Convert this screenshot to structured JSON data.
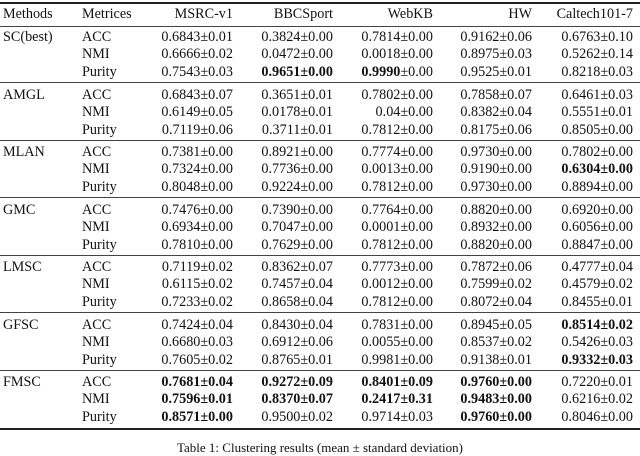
{
  "headers": [
    "Methods",
    "Metrices",
    "MSRC-v1",
    "BBCSport",
    "WebKB",
    "HW",
    "Caltech101-7"
  ],
  "groups": [
    {
      "method": "SC(best)",
      "rows": [
        {
          "metric": "ACC",
          "cells": [
            [
              "0.6843",
              "0.01",
              ""
            ],
            [
              "0.3824",
              "0.00",
              ""
            ],
            [
              "0.7814",
              "0.00",
              ""
            ],
            [
              "0.9162",
              "0.06",
              ""
            ],
            [
              "0.6763",
              "0.10",
              ""
            ]
          ]
        },
        {
          "metric": "NMI",
          "cells": [
            [
              "0.6666",
              "0.02",
              ""
            ],
            [
              "0.0472",
              "0.00",
              ""
            ],
            [
              "0.0018",
              "0.00",
              ""
            ],
            [
              "0.8975",
              "0.03",
              ""
            ],
            [
              "0.5262",
              "0.14",
              ""
            ]
          ]
        },
        {
          "metric": "Purity",
          "cells": [
            [
              "0.7543",
              "0.03",
              ""
            ],
            [
              "0.9651",
              "0.00",
              "all"
            ],
            [
              "0.9990",
              "0.00",
              "mean"
            ],
            [
              "0.9525",
              "0.01",
              ""
            ],
            [
              "0.8218",
              "0.03",
              ""
            ]
          ]
        }
      ]
    },
    {
      "method": "AMGL",
      "rows": [
        {
          "metric": "ACC",
          "cells": [
            [
              "0.6843",
              "0.07",
              ""
            ],
            [
              "0.3651",
              "0.01",
              ""
            ],
            [
              "0.7802",
              "0.00",
              ""
            ],
            [
              "0.7858",
              "0.07",
              ""
            ],
            [
              "0.6461",
              "0.03",
              ""
            ]
          ]
        },
        {
          "metric": "NMI",
          "cells": [
            [
              "0.6149",
              "0.05",
              ""
            ],
            [
              "0.0178",
              "0.01",
              ""
            ],
            [
              "0.04",
              "0.00",
              ""
            ],
            [
              "0.8382",
              "0.04",
              ""
            ],
            [
              "0.5551",
              "0.01",
              ""
            ]
          ]
        },
        {
          "metric": "Purity",
          "cells": [
            [
              "0.7119",
              "0.06",
              ""
            ],
            [
              "0.3711",
              "0.01",
              ""
            ],
            [
              "0.7812",
              "0.00",
              ""
            ],
            [
              "0.8175",
              "0.06",
              ""
            ],
            [
              "0.8505",
              "0.00",
              ""
            ]
          ]
        }
      ]
    },
    {
      "method": "MLAN",
      "rows": [
        {
          "metric": "ACC",
          "cells": [
            [
              "0.7381",
              "0.00",
              ""
            ],
            [
              "0.8921",
              "0.00",
              ""
            ],
            [
              "0.7774",
              "0.00",
              ""
            ],
            [
              "0.9730",
              "0.00",
              ""
            ],
            [
              "0.7802",
              "0.00",
              ""
            ]
          ]
        },
        {
          "metric": "NMI",
          "cells": [
            [
              "0.7324",
              "0.00",
              ""
            ],
            [
              "0.7736",
              "0.00",
              ""
            ],
            [
              "0.0013",
              "0.00",
              ""
            ],
            [
              "0.9190",
              "0.00",
              ""
            ],
            [
              "0.6304",
              "0.00",
              "all"
            ]
          ]
        },
        {
          "metric": "Purity",
          "cells": [
            [
              "0.8048",
              "0.00",
              ""
            ],
            [
              "0.9224",
              "0.00",
              ""
            ],
            [
              "0.7812",
              "0.00",
              ""
            ],
            [
              "0.9730",
              "0.00",
              ""
            ],
            [
              "0.8894",
              "0.00",
              ""
            ]
          ]
        }
      ]
    },
    {
      "method": "GMC",
      "rows": [
        {
          "metric": "ACC",
          "cells": [
            [
              "0.7476",
              "0.00",
              ""
            ],
            [
              "0.7390",
              "0.00",
              ""
            ],
            [
              "0.7764",
              "0.00",
              ""
            ],
            [
              "0.8820",
              "0.00",
              ""
            ],
            [
              "0.6920",
              "0.00",
              ""
            ]
          ]
        },
        {
          "metric": "NMI",
          "cells": [
            [
              "0.6934",
              "0.00",
              ""
            ],
            [
              "0.7047",
              "0.00",
              ""
            ],
            [
              "0.0001",
              "0.00",
              ""
            ],
            [
              "0.8932",
              "0.00",
              ""
            ],
            [
              "0.6056",
              "0.00",
              ""
            ]
          ]
        },
        {
          "metric": "Purity",
          "cells": [
            [
              "0.7810",
              "0.00",
              ""
            ],
            [
              "0.7629",
              "0.00",
              ""
            ],
            [
              "0.7812",
              "0.00",
              ""
            ],
            [
              "0.8820",
              "0.00",
              ""
            ],
            [
              "0.8847",
              "0.00",
              ""
            ]
          ]
        }
      ]
    },
    {
      "method": "LMSC",
      "rows": [
        {
          "metric": "ACC",
          "cells": [
            [
              "0.7119",
              "0.02",
              ""
            ],
            [
              "0.8362",
              "0.07",
              ""
            ],
            [
              "0.7773",
              "0.00",
              ""
            ],
            [
              "0.7872",
              "0.06",
              ""
            ],
            [
              "0.4777",
              "0.04",
              ""
            ]
          ]
        },
        {
          "metric": "NMI",
          "cells": [
            [
              "0.6115",
              "0.02",
              ""
            ],
            [
              "0.7457",
              "0.04",
              ""
            ],
            [
              "0.0012",
              "0.00",
              ""
            ],
            [
              "0.7599",
              "0.02",
              ""
            ],
            [
              "0.4579",
              "0.02",
              ""
            ]
          ]
        },
        {
          "metric": "Purity",
          "cells": [
            [
              "0.7233",
              "0.02",
              ""
            ],
            [
              "0.8658",
              "0.04",
              ""
            ],
            [
              "0.7812",
              "0.00",
              ""
            ],
            [
              "0.8072",
              "0.04",
              ""
            ],
            [
              "0.8455",
              "0.01",
              ""
            ]
          ]
        }
      ]
    },
    {
      "method": "GFSC",
      "rows": [
        {
          "metric": "ACC",
          "cells": [
            [
              "0.7424",
              "0.04",
              ""
            ],
            [
              "0.8430",
              "0.04",
              ""
            ],
            [
              "0.7831",
              "0.00",
              ""
            ],
            [
              "0.8945",
              "0.05",
              ""
            ],
            [
              "0.8514",
              "0.02",
              "all"
            ]
          ]
        },
        {
          "metric": "NMI",
          "cells": [
            [
              "0.6680",
              "0.03",
              ""
            ],
            [
              "0.6912",
              "0.06",
              ""
            ],
            [
              "0.0055",
              "0.00",
              ""
            ],
            [
              "0.8537",
              "0.02",
              ""
            ],
            [
              "0.5426",
              "0.03",
              ""
            ]
          ]
        },
        {
          "metric": "Purity",
          "cells": [
            [
              "0.7605",
              "0.02",
              ""
            ],
            [
              "0.8765",
              "0.01",
              ""
            ],
            [
              "0.9981",
              "0.00",
              ""
            ],
            [
              "0.9138",
              "0.01",
              ""
            ],
            [
              "0.9332",
              "0.03",
              "all"
            ]
          ]
        }
      ]
    },
    {
      "method": "FMSC",
      "rows": [
        {
          "metric": "ACC",
          "cells": [
            [
              "0.7681",
              "0.04",
              "all"
            ],
            [
              "0.9272",
              "0.09",
              "all"
            ],
            [
              "0.8401",
              "0.09",
              "all"
            ],
            [
              "0.9760",
              "0.00",
              "all"
            ],
            [
              "0.7220",
              "0.01",
              ""
            ]
          ]
        },
        {
          "metric": "NMI",
          "cells": [
            [
              "0.7596",
              "0.01",
              "all"
            ],
            [
              "0.8370",
              "0.07",
              "all"
            ],
            [
              "0.2417",
              "0.31",
              "all"
            ],
            [
              "0.9483",
              "0.00",
              "all"
            ],
            [
              "0.6216",
              "0.02",
              ""
            ]
          ]
        },
        {
          "metric": "Purity",
          "cells": [
            [
              "0.8571",
              "0.00",
              "all"
            ],
            [
              "0.9500",
              "0.02",
              ""
            ],
            [
              "0.9714",
              "0.03",
              ""
            ],
            [
              "0.9760",
              "0.00",
              "all"
            ],
            [
              "0.8046",
              "0.00",
              ""
            ]
          ]
        }
      ]
    }
  ],
  "pm_symbol": "±",
  "caption": "Table 1: Clustering results (mean ± standard deviation)"
}
